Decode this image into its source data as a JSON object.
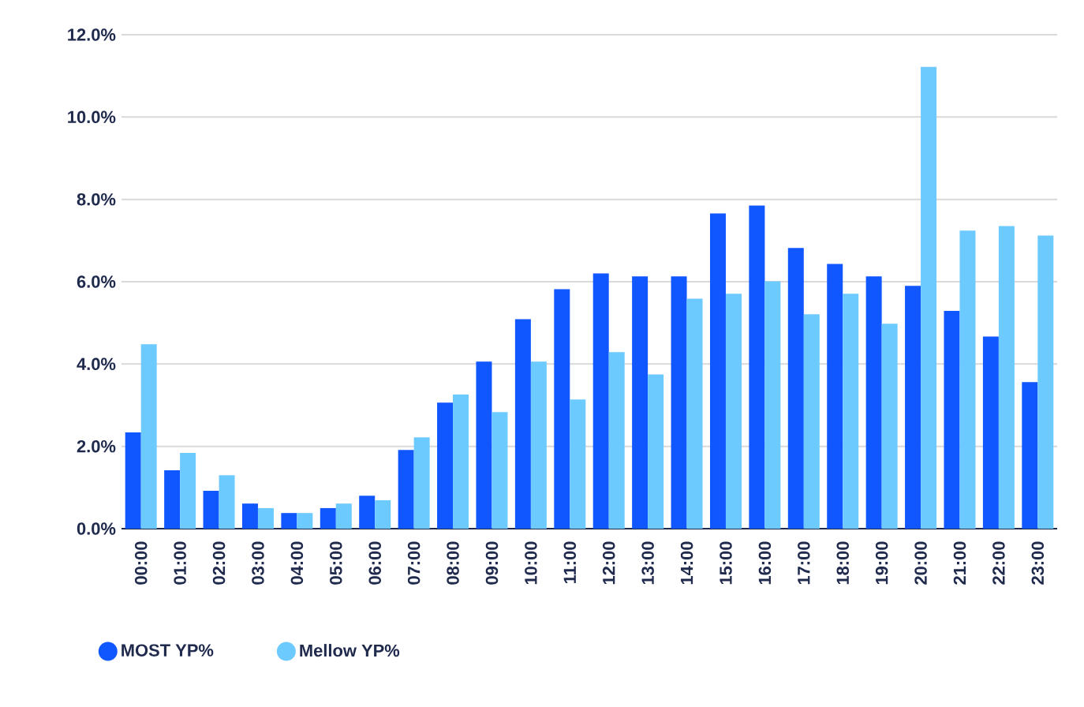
{
  "chart_data": {
    "type": "bar",
    "categories": [
      "00:00",
      "01:00",
      "02:00",
      "03:00",
      "04:00",
      "05:00",
      "06:00",
      "07:00",
      "08:00",
      "09:00",
      "10:00",
      "11:00",
      "12:00",
      "13:00",
      "14:00",
      "15:00",
      "16:00",
      "17:00",
      "18:00",
      "19:00",
      "20:00",
      "21:00",
      "22:00",
      "23:00"
    ],
    "series": [
      {
        "name": "MOST YP%",
        "color": "#1157ff",
        "values": [
          2.34,
          1.42,
          0.92,
          0.61,
          0.38,
          0.5,
          0.8,
          1.91,
          3.06,
          4.06,
          5.09,
          5.82,
          6.2,
          6.13,
          6.13,
          7.66,
          7.85,
          6.82,
          6.43,
          6.13,
          5.9,
          5.29,
          4.67,
          3.56
        ]
      },
      {
        "name": "Mellow YP%",
        "color": "#6dcaff",
        "values": [
          4.48,
          1.84,
          1.3,
          0.5,
          0.38,
          0.61,
          0.69,
          2.22,
          3.26,
          2.83,
          4.06,
          3.14,
          4.29,
          3.75,
          5.59,
          5.71,
          6.01,
          5.21,
          5.71,
          4.98,
          11.22,
          7.24,
          7.35,
          7.12
        ]
      }
    ],
    "ylim": [
      0,
      12
    ],
    "yticks": [
      {
        "value": 0,
        "label": "0.0%"
      },
      {
        "value": 2,
        "label": "2.0%"
      },
      {
        "value": 4,
        "label": "4.0%"
      },
      {
        "value": 6,
        "label": "6.0%"
      },
      {
        "value": 8,
        "label": "8.0%"
      },
      {
        "value": 10,
        "label": "10.0%"
      },
      {
        "value": 12,
        "label": "12.0%"
      }
    ],
    "grid": "y",
    "legend": "bottom left"
  }
}
